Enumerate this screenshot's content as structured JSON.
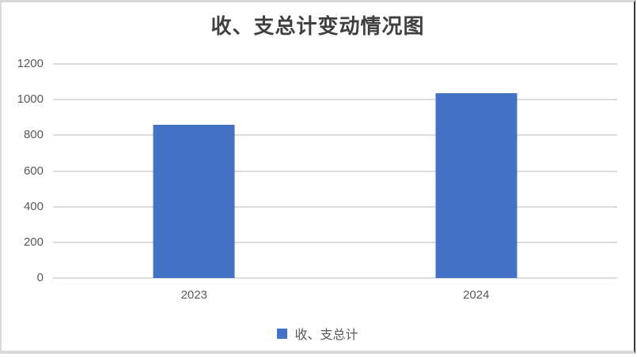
{
  "chart_data": {
    "type": "bar",
    "title": "收、支总计变动情况图",
    "categories": [
      "2023",
      "2024"
    ],
    "series": [
      {
        "name": "收、支总计",
        "values": [
          860,
          1035
        ]
      }
    ],
    "xlabel": "",
    "ylabel": "",
    "ylim": [
      0,
      1200
    ],
    "yticks": [
      0,
      200,
      400,
      600,
      800,
      1000,
      1200
    ],
    "grid": "horizontal",
    "legend_position": "bottom",
    "colors": {
      "bar": "#4472C4",
      "gridline": "#DCDCDC",
      "axis_label": "#595959",
      "title": "#3F3F3F"
    }
  }
}
